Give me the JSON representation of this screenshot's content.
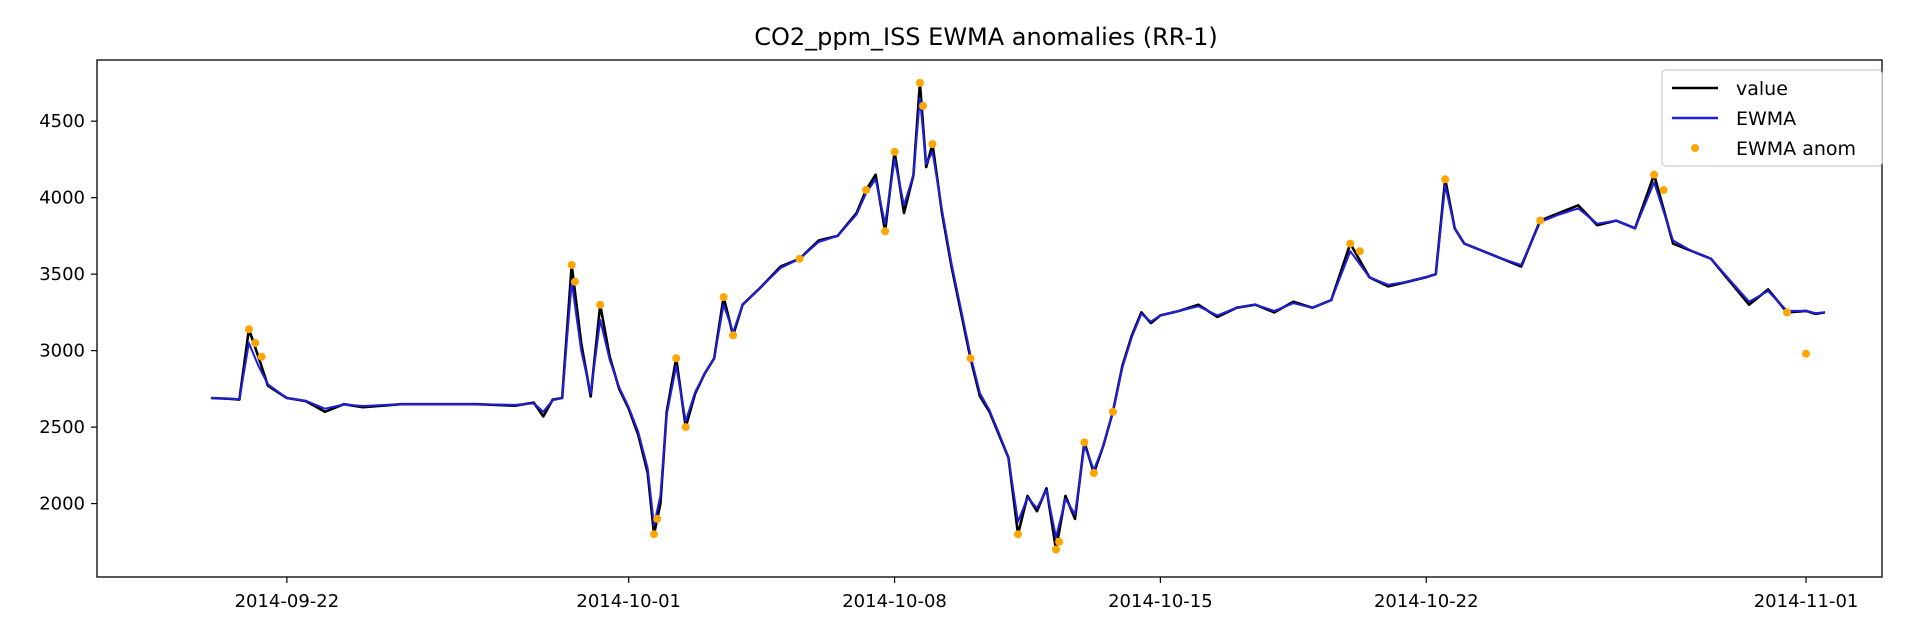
{
  "chart_data": {
    "type": "line",
    "title": "CO2_ppm_ISS EWMA anomalies (RR-1)",
    "xlabel": "",
    "ylabel": "",
    "x_range": [
      "2014-09-17",
      "2014-11-03"
    ],
    "ylim": [
      1520,
      4900
    ],
    "x_ticks": [
      "2014-09-22",
      "2014-10-01",
      "2014-10-08",
      "2014-10-15",
      "2014-10-22",
      "2014-11-01"
    ],
    "y_ticks": [
      2000,
      2500,
      3000,
      3500,
      4000,
      4500
    ],
    "grid": false,
    "legend_position": "top-right",
    "series": [
      {
        "name": "value",
        "color": "#000000",
        "points": [
          [
            "2014-09-20",
            2690
          ],
          [
            "2014-09-20T12:00",
            2685
          ],
          [
            "2014-09-20T18:00",
            2680
          ],
          [
            "2014-09-21",
            3140
          ],
          [
            "2014-09-21T06:00",
            2960
          ],
          [
            "2014-09-21T12:00",
            2770
          ],
          [
            "2014-09-22",
            2690
          ],
          [
            "2014-09-22T12:00",
            2670
          ],
          [
            "2014-09-23",
            2600
          ],
          [
            "2014-09-23T12:00",
            2650
          ],
          [
            "2014-09-24",
            2630
          ],
          [
            "2014-09-25",
            2650
          ],
          [
            "2014-09-26",
            2650
          ],
          [
            "2014-09-27",
            2650
          ],
          [
            "2014-09-28",
            2640
          ],
          [
            "2014-09-28T12:00",
            2660
          ],
          [
            "2014-09-28T18:00",
            2570
          ],
          [
            "2014-09-29",
            2680
          ],
          [
            "2014-09-29T06:00",
            2690
          ],
          [
            "2014-09-29T12:00",
            3560
          ],
          [
            "2014-09-29T18:00",
            3050
          ],
          [
            "2014-09-30",
            2700
          ],
          [
            "2014-09-30T06:00",
            3300
          ],
          [
            "2014-09-30T12:00",
            2960
          ],
          [
            "2014-09-30T18:00",
            2750
          ],
          [
            "2014-10-01",
            2620
          ],
          [
            "2014-10-01T06:00",
            2450
          ],
          [
            "2014-10-01T12:00",
            2200
          ],
          [
            "2014-10-01T16:00",
            1800
          ],
          [
            "2014-10-01T20:00",
            2000
          ],
          [
            "2014-10-02",
            2600
          ],
          [
            "2014-10-02T06:00",
            2950
          ],
          [
            "2014-10-02T12:00",
            2500
          ],
          [
            "2014-10-02T18:00",
            2720
          ],
          [
            "2014-10-03",
            2850
          ],
          [
            "2014-10-03T06:00",
            2950
          ],
          [
            "2014-10-03T12:00",
            3350
          ],
          [
            "2014-10-03T18:00",
            3100
          ],
          [
            "2014-10-04",
            3300
          ],
          [
            "2014-10-04T12:00",
            3420
          ],
          [
            "2014-10-05",
            3550
          ],
          [
            "2014-10-05T12:00",
            3600
          ],
          [
            "2014-10-06",
            3720
          ],
          [
            "2014-10-06T12:00",
            3750
          ],
          [
            "2014-10-07",
            3900
          ],
          [
            "2014-10-07T06:00",
            4050
          ],
          [
            "2014-10-07T12:00",
            4150
          ],
          [
            "2014-10-07T18:00",
            3780
          ],
          [
            "2014-10-08",
            4300
          ],
          [
            "2014-10-08T06:00",
            3900
          ],
          [
            "2014-10-08T12:00",
            4150
          ],
          [
            "2014-10-08T16:00",
            4750
          ],
          [
            "2014-10-08T20:00",
            4200
          ],
          [
            "2014-10-09",
            4350
          ],
          [
            "2014-10-09T06:00",
            3900
          ],
          [
            "2014-10-09T12:00",
            3550
          ],
          [
            "2014-10-09T18:00",
            3250
          ],
          [
            "2014-10-10",
            2950
          ],
          [
            "2014-10-10T06:00",
            2700
          ],
          [
            "2014-10-10T12:00",
            2600
          ],
          [
            "2014-10-10T18:00",
            2450
          ],
          [
            "2014-10-11",
            2300
          ],
          [
            "2014-10-11T06:00",
            1800
          ],
          [
            "2014-10-11T12:00",
            2050
          ],
          [
            "2014-10-11T18:00",
            1950
          ],
          [
            "2014-10-12",
            2100
          ],
          [
            "2014-10-12T06:00",
            1700
          ],
          [
            "2014-10-12T12:00",
            2050
          ],
          [
            "2014-10-12T18:00",
            1900
          ],
          [
            "2014-10-13",
            2400
          ],
          [
            "2014-10-13T06:00",
            2200
          ],
          [
            "2014-10-13T12:00",
            2380
          ],
          [
            "2014-10-13T18:00",
            2600
          ],
          [
            "2014-10-14",
            2900
          ],
          [
            "2014-10-14T06:00",
            3100
          ],
          [
            "2014-10-14T12:00",
            3250
          ],
          [
            "2014-10-14T18:00",
            3180
          ],
          [
            "2014-10-15",
            3230
          ],
          [
            "2014-10-15T12:00",
            3260
          ],
          [
            "2014-10-16",
            3300
          ],
          [
            "2014-10-16T12:00",
            3220
          ],
          [
            "2014-10-17",
            3280
          ],
          [
            "2014-10-17T12:00",
            3300
          ],
          [
            "2014-10-18",
            3250
          ],
          [
            "2014-10-18T12:00",
            3320
          ],
          [
            "2014-10-19",
            3280
          ],
          [
            "2014-10-19T12:00",
            3330
          ],
          [
            "2014-10-20",
            3700
          ],
          [
            "2014-10-20T12:00",
            3480
          ],
          [
            "2014-10-21",
            3420
          ],
          [
            "2014-10-21T12:00",
            3450
          ],
          [
            "2014-10-22",
            3480
          ],
          [
            "2014-10-22T06:00",
            3500
          ],
          [
            "2014-10-22T12:00",
            4120
          ],
          [
            "2014-10-22T18:00",
            3800
          ],
          [
            "2014-10-23",
            3700
          ],
          [
            "2014-10-23T12:00",
            3650
          ],
          [
            "2014-10-24",
            3600
          ],
          [
            "2014-10-24T12:00",
            3550
          ],
          [
            "2014-10-25",
            3850
          ],
          [
            "2014-10-25T12:00",
            3900
          ],
          [
            "2014-10-26",
            3950
          ],
          [
            "2014-10-26T12:00",
            3820
          ],
          [
            "2014-10-27",
            3850
          ],
          [
            "2014-10-27T12:00",
            3800
          ],
          [
            "2014-10-28",
            4150
          ],
          [
            "2014-10-28T12:00",
            3700
          ],
          [
            "2014-10-29",
            3650
          ],
          [
            "2014-10-29T12:00",
            3600
          ],
          [
            "2014-10-30",
            3450
          ],
          [
            "2014-10-30T12:00",
            3300
          ],
          [
            "2014-10-31",
            3400
          ],
          [
            "2014-10-31T12:00",
            3250
          ],
          [
            "2014-11-01",
            3260
          ],
          [
            "2014-11-01T06:00",
            3240
          ],
          [
            "2014-11-01T12:00",
            3250
          ]
        ]
      },
      {
        "name": "EWMA",
        "color": "#1f1fe0",
        "points": [
          [
            "2014-09-20",
            2690
          ],
          [
            "2014-09-20T12:00",
            2685
          ],
          [
            "2014-09-20T18:00",
            2682
          ],
          [
            "2014-09-21",
            3050
          ],
          [
            "2014-09-21T06:00",
            2900
          ],
          [
            "2014-09-21T12:00",
            2780
          ],
          [
            "2014-09-22",
            2690
          ],
          [
            "2014-09-22T12:00",
            2672
          ],
          [
            "2014-09-23",
            2620
          ],
          [
            "2014-09-23T12:00",
            2648
          ],
          [
            "2014-09-24",
            2638
          ],
          [
            "2014-09-25",
            2650
          ],
          [
            "2014-09-26",
            2650
          ],
          [
            "2014-09-27",
            2650
          ],
          [
            "2014-09-28",
            2645
          ],
          [
            "2014-09-28T12:00",
            2655
          ],
          [
            "2014-09-28T18:00",
            2600
          ],
          [
            "2014-09-29",
            2675
          ],
          [
            "2014-09-29T06:00",
            2690
          ],
          [
            "2014-09-29T12:00",
            3450
          ],
          [
            "2014-09-29T18:00",
            3000
          ],
          [
            "2014-09-30",
            2720
          ],
          [
            "2014-09-30T06:00",
            3200
          ],
          [
            "2014-09-30T12:00",
            2940
          ],
          [
            "2014-09-30T18:00",
            2760
          ],
          [
            "2014-10-01",
            2630
          ],
          [
            "2014-10-01T06:00",
            2470
          ],
          [
            "2014-10-01T12:00",
            2230
          ],
          [
            "2014-10-01T16:00",
            1860
          ],
          [
            "2014-10-01T20:00",
            2050
          ],
          [
            "2014-10-02",
            2580
          ],
          [
            "2014-10-02T06:00",
            2900
          ],
          [
            "2014-10-02T12:00",
            2540
          ],
          [
            "2014-10-02T18:00",
            2730
          ],
          [
            "2014-10-03",
            2850
          ],
          [
            "2014-10-03T06:00",
            2950
          ],
          [
            "2014-10-03T12:00",
            3300
          ],
          [
            "2014-10-03T18:00",
            3120
          ],
          [
            "2014-10-04",
            3300
          ],
          [
            "2014-10-04T12:00",
            3420
          ],
          [
            "2014-10-05",
            3540
          ],
          [
            "2014-10-05T12:00",
            3600
          ],
          [
            "2014-10-06",
            3710
          ],
          [
            "2014-10-06T12:00",
            3750
          ],
          [
            "2014-10-07",
            3890
          ],
          [
            "2014-10-07T06:00",
            4030
          ],
          [
            "2014-10-07T12:00",
            4120
          ],
          [
            "2014-10-07T18:00",
            3830
          ],
          [
            "2014-10-08",
            4250
          ],
          [
            "2014-10-08T06:00",
            3950
          ],
          [
            "2014-10-08T12:00",
            4150
          ],
          [
            "2014-10-08T16:00",
            4650
          ],
          [
            "2014-10-08T20:00",
            4220
          ],
          [
            "2014-10-09",
            4300
          ],
          [
            "2014-10-09T06:00",
            3920
          ],
          [
            "2014-10-09T12:00",
            3570
          ],
          [
            "2014-10-09T18:00",
            3270
          ],
          [
            "2014-10-10",
            2970
          ],
          [
            "2014-10-10T06:00",
            2720
          ],
          [
            "2014-10-10T12:00",
            2610
          ],
          [
            "2014-10-10T18:00",
            2460
          ],
          [
            "2014-10-11",
            2300
          ],
          [
            "2014-10-11T06:00",
            1880
          ],
          [
            "2014-10-11T12:00",
            2040
          ],
          [
            "2014-10-11T18:00",
            1970
          ],
          [
            "2014-10-12",
            2090
          ],
          [
            "2014-10-12T06:00",
            1780
          ],
          [
            "2014-10-12T12:00",
            2030
          ],
          [
            "2014-10-12T18:00",
            1930
          ],
          [
            "2014-10-13",
            2380
          ],
          [
            "2014-10-13T06:00",
            2220
          ],
          [
            "2014-10-13T12:00",
            2380
          ],
          [
            "2014-10-13T18:00",
            2600
          ],
          [
            "2014-10-14",
            2890
          ],
          [
            "2014-10-14T06:00",
            3090
          ],
          [
            "2014-10-14T12:00",
            3240
          ],
          [
            "2014-10-14T18:00",
            3190
          ],
          [
            "2014-10-15",
            3230
          ],
          [
            "2014-10-15T12:00",
            3260
          ],
          [
            "2014-10-16",
            3290
          ],
          [
            "2014-10-16T12:00",
            3230
          ],
          [
            "2014-10-17",
            3280
          ],
          [
            "2014-10-17T12:00",
            3300
          ],
          [
            "2014-10-18",
            3260
          ],
          [
            "2014-10-18T12:00",
            3310
          ],
          [
            "2014-10-19",
            3280
          ],
          [
            "2014-10-19T12:00",
            3330
          ],
          [
            "2014-10-20",
            3650
          ],
          [
            "2014-10-20T12:00",
            3480
          ],
          [
            "2014-10-21",
            3430
          ],
          [
            "2014-10-21T12:00",
            3450
          ],
          [
            "2014-10-22",
            3480
          ],
          [
            "2014-10-22T06:00",
            3500
          ],
          [
            "2014-10-22T12:00",
            4080
          ],
          [
            "2014-10-22T18:00",
            3800
          ],
          [
            "2014-10-23",
            3700
          ],
          [
            "2014-10-23T12:00",
            3650
          ],
          [
            "2014-10-24",
            3600
          ],
          [
            "2014-10-24T12:00",
            3560
          ],
          [
            "2014-10-25",
            3840
          ],
          [
            "2014-10-25T12:00",
            3890
          ],
          [
            "2014-10-26",
            3930
          ],
          [
            "2014-10-26T12:00",
            3830
          ],
          [
            "2014-10-27",
            3850
          ],
          [
            "2014-10-27T12:00",
            3800
          ],
          [
            "2014-10-28",
            4100
          ],
          [
            "2014-10-28T12:00",
            3720
          ],
          [
            "2014-10-29",
            3650
          ],
          [
            "2014-10-29T12:00",
            3600
          ],
          [
            "2014-10-30",
            3460
          ],
          [
            "2014-10-30T12:00",
            3320
          ],
          [
            "2014-10-31",
            3390
          ],
          [
            "2014-10-31T12:00",
            3260
          ],
          [
            "2014-11-01",
            3260
          ],
          [
            "2014-11-01T06:00",
            3245
          ],
          [
            "2014-11-01T12:00",
            3250
          ]
        ]
      },
      {
        "name": "EWMA anom",
        "color": "#ffa500",
        "marker": "dot",
        "points": [
          [
            "2014-09-21",
            3140
          ],
          [
            "2014-09-21T04:00",
            3050
          ],
          [
            "2014-09-21T08:00",
            2960
          ],
          [
            "2014-09-29T12:00",
            3560
          ],
          [
            "2014-09-29T14:00",
            3450
          ],
          [
            "2014-09-30T06:00",
            3300
          ],
          [
            "2014-10-01T16:00",
            1800
          ],
          [
            "2014-10-01T18:00",
            1900
          ],
          [
            "2014-10-02T06:00",
            2950
          ],
          [
            "2014-10-02T12:00",
            2500
          ],
          [
            "2014-10-03T12:00",
            3350
          ],
          [
            "2014-10-03T18:00",
            3100
          ],
          [
            "2014-10-05T12:00",
            3600
          ],
          [
            "2014-10-07T06:00",
            4050
          ],
          [
            "2014-10-07T18:00",
            3780
          ],
          [
            "2014-10-08",
            4300
          ],
          [
            "2014-10-08T16:00",
            4750
          ],
          [
            "2014-10-08T18:00",
            4600
          ],
          [
            "2014-10-09",
            4350
          ],
          [
            "2014-10-10",
            2950
          ],
          [
            "2014-10-11T06:00",
            1800
          ],
          [
            "2014-10-12T06:00",
            1700
          ],
          [
            "2014-10-12T08:00",
            1750
          ],
          [
            "2014-10-13",
            2400
          ],
          [
            "2014-10-13T06:00",
            2200
          ],
          [
            "2014-10-13T18:00",
            2600
          ],
          [
            "2014-10-20",
            3700
          ],
          [
            "2014-10-20T06:00",
            3650
          ],
          [
            "2014-10-22T12:00",
            4120
          ],
          [
            "2014-10-25",
            3850
          ],
          [
            "2014-10-28",
            4150
          ],
          [
            "2014-10-28T06:00",
            4050
          ],
          [
            "2014-10-31T12:00",
            3250
          ],
          [
            "2014-11-01",
            2980
          ]
        ]
      }
    ]
  }
}
